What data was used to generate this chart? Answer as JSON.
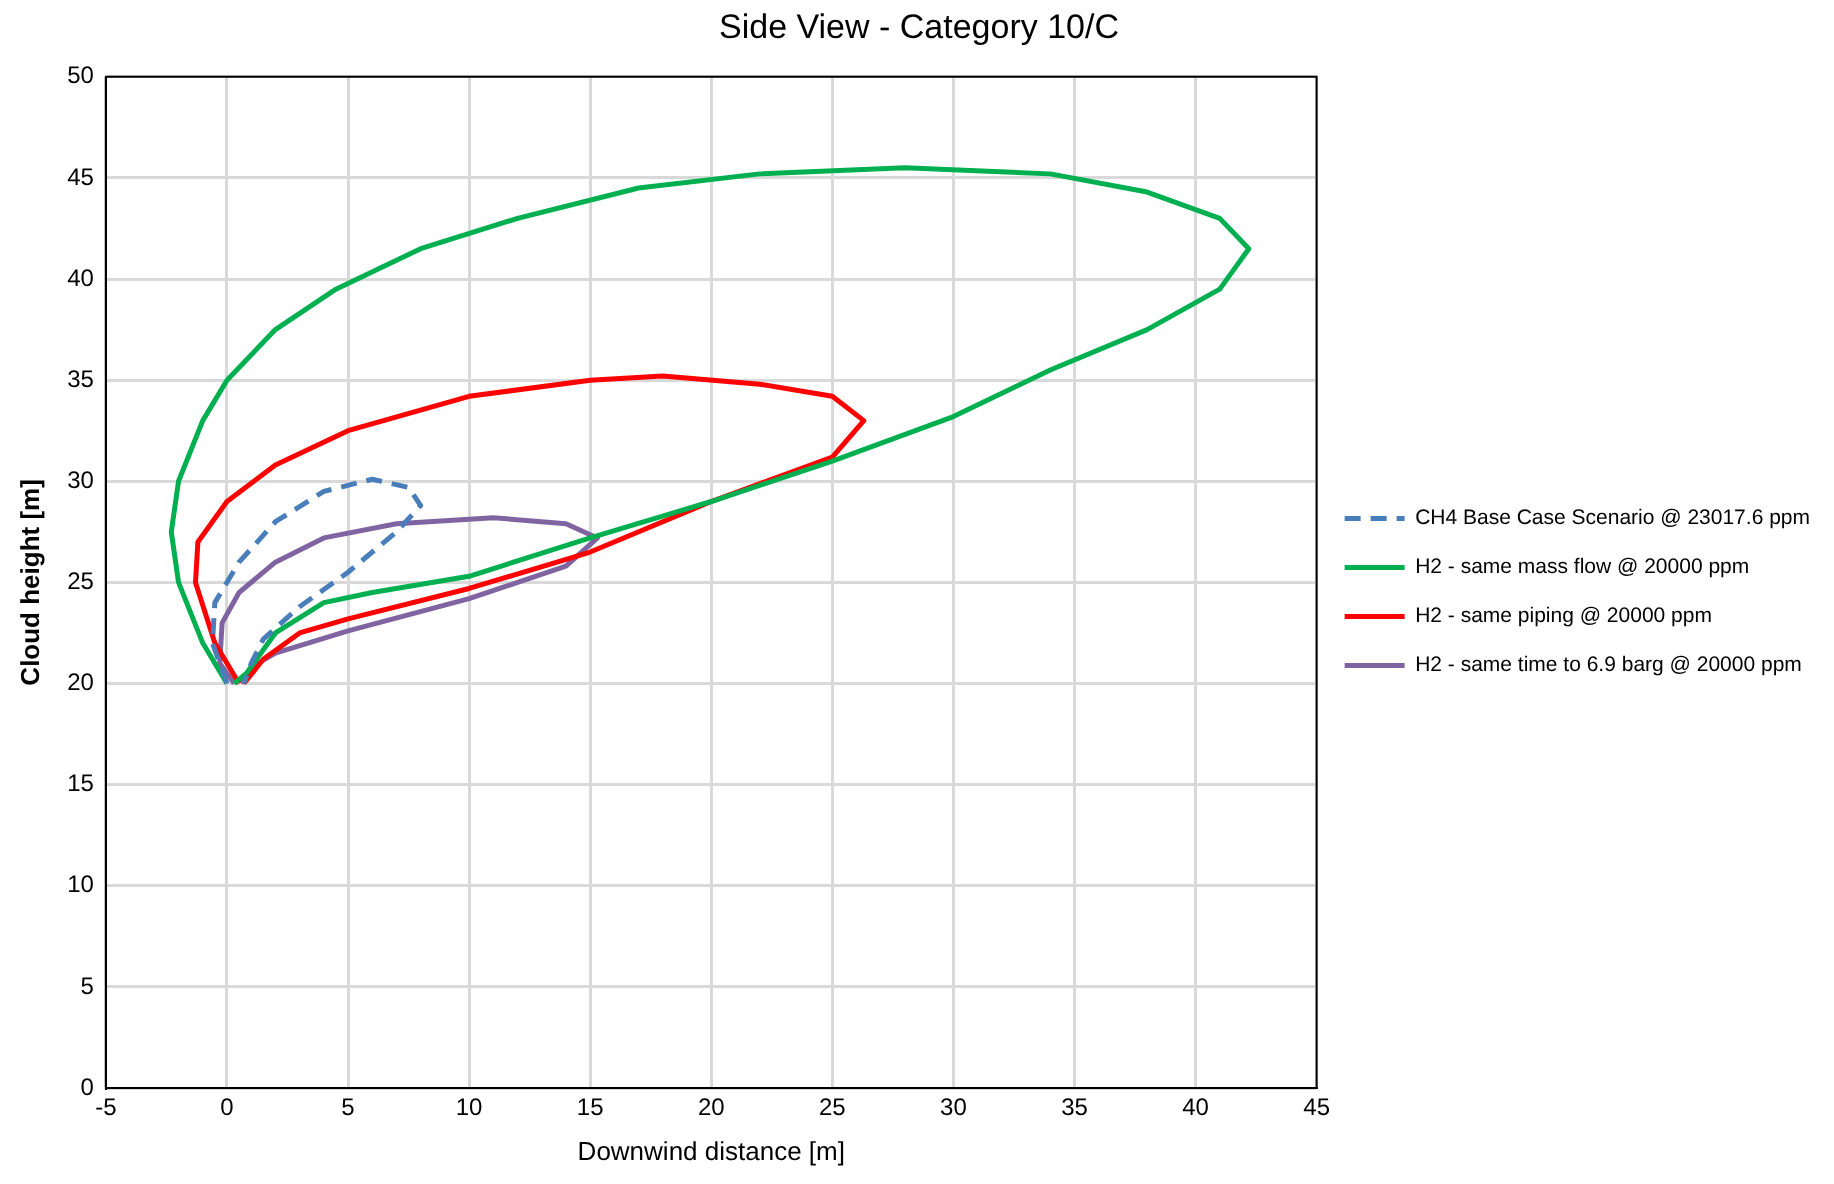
{
  "chart_data": {
    "type": "line",
    "title": "Side View - Category 10/C",
    "xlabel": "Downwind distance [m]",
    "ylabel": "Cloud height [m]",
    "xlim": [
      -5,
      45
    ],
    "xticks": [
      -5,
      0,
      5,
      10,
      15,
      20,
      25,
      30,
      35,
      40,
      45
    ],
    "ylim": [
      0,
      50
    ],
    "yticks": [
      0,
      5,
      10,
      15,
      20,
      25,
      30,
      35,
      40,
      45,
      50
    ],
    "grid": true,
    "legend": "right",
    "marker": "none",
    "series": [
      {
        "name": "CH4 Base Case Scenario @ 23017.6 ppm",
        "color": "#4a7ebb",
        "line_style": "dashed",
        "x": [
          0,
          -0.6,
          -0.5,
          0.5,
          2,
          4,
          6,
          7.5,
          8,
          7,
          5,
          3,
          1.5,
          1,
          0.7
        ],
        "values": [
          20,
          22,
          24,
          26,
          28,
          29.5,
          30.1,
          29.7,
          28.8,
          27.5,
          25.5,
          23.8,
          22.2,
          21,
          20
        ]
      },
      {
        "name": "H2 - same mass flow @ 20000 ppm",
        "color": "#00b050",
        "line_style": "solid",
        "x": [
          0,
          -1,
          -2,
          -2.3,
          -2,
          -1,
          0,
          2,
          4.5,
          8,
          12,
          17,
          22,
          28,
          34,
          38,
          41,
          42.2,
          41,
          38,
          34,
          30,
          25,
          20,
          15,
          10,
          6,
          4,
          2,
          0.8,
          0.3
        ],
        "values": [
          20,
          22,
          25,
          27.5,
          30,
          33,
          35,
          37.5,
          39.5,
          41.5,
          43,
          44.5,
          45.2,
          45.5,
          45.2,
          44.3,
          43,
          41.5,
          39.5,
          37.5,
          35.5,
          33.2,
          31,
          29,
          27.2,
          25.3,
          24.5,
          24,
          22.5,
          20.5,
          20
        ]
      },
      {
        "name": "H2 - same piping @ 20000 ppm",
        "color": "#ff0000",
        "line_style": "solid",
        "x": [
          0.5,
          -0.5,
          -1.3,
          -1.2,
          0,
          2,
          5,
          10,
          15,
          18,
          22,
          25,
          26.3,
          25,
          20,
          15,
          10,
          5,
          3,
          1.5,
          0.7
        ],
        "values": [
          20,
          22,
          25,
          27,
          29,
          30.8,
          32.5,
          34.2,
          35,
          35.2,
          34.8,
          34.2,
          33,
          31.2,
          29,
          26.5,
          24.7,
          23.2,
          22.5,
          21.2,
          20
        ]
      },
      {
        "name": "H2 - same time to 6.9 barg @ 20000 ppm",
        "color": "#8064a2",
        "line_style": "solid",
        "x": [
          0.3,
          -0.3,
          -0.2,
          0.5,
          2,
          4,
          7,
          11,
          14,
          15.3,
          14,
          10,
          5,
          2,
          1,
          0.6
        ],
        "values": [
          20,
          21,
          23,
          24.5,
          26,
          27.2,
          27.9,
          28.2,
          27.9,
          27.2,
          25.8,
          24.2,
          22.6,
          21.5,
          20.8,
          20
        ]
      }
    ]
  }
}
